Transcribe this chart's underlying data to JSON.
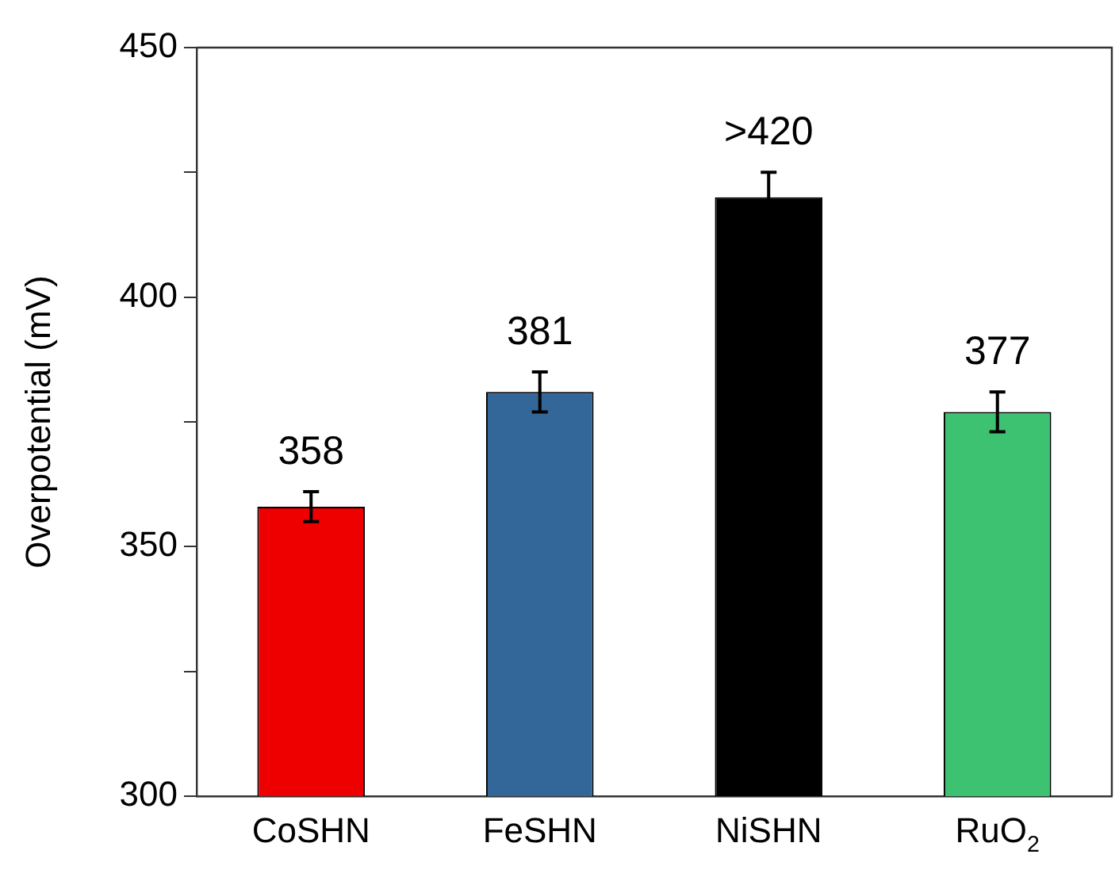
{
  "chart_data": {
    "type": "bar",
    "ylabel": "Overpotential (mV)",
    "categories": [
      "CoSHN",
      "FeSHN",
      "NiSHN",
      "RuO$_{2}$"
    ],
    "values": [
      358,
      381,
      420,
      377
    ],
    "colors": [
      "#ee0000",
      "#336699",
      "#000000",
      "#3cc270"
    ],
    "errors": [
      3,
      4,
      5,
      4
    ],
    "value_labels": [
      "358",
      "381",
      ">420",
      "377"
    ],
    "ylim": [
      300,
      450
    ],
    "yticks": [
      300,
      {
        "value": 325,
        "label": null
      },
      350,
      {
        "value": 375,
        "label": null
      },
      400,
      {
        "value": 425,
        "label": null
      },
      450
    ],
    "grid": false,
    "legend": false
  }
}
